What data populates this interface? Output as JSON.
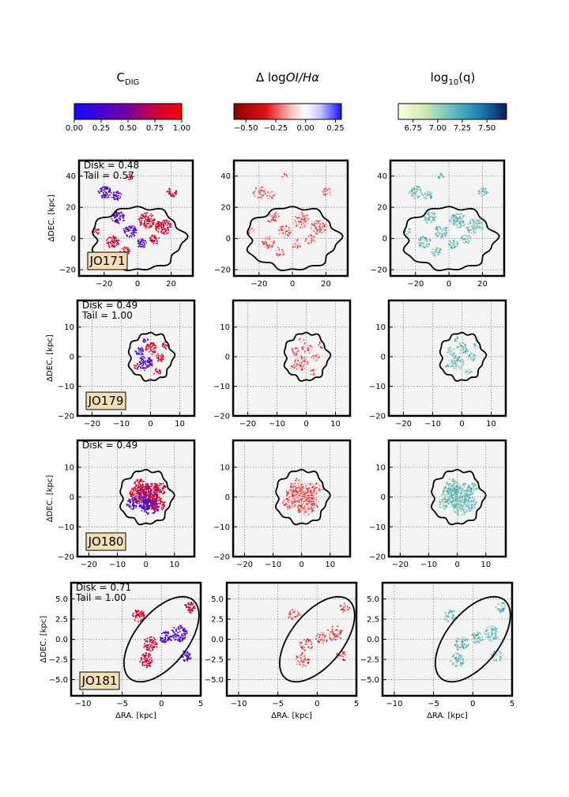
{
  "figure": {
    "columns": [
      {
        "title": "C",
        "title_sub": "DIG",
        "title_sup": "",
        "colorbar": {
          "cmap": "bwr_dig",
          "vmin": 0.0,
          "vmax": 1.0,
          "ticks": [
            0.0,
            0.25,
            0.5,
            0.75,
            1.0
          ],
          "tick_labels": [
            "0.00",
            "0.25",
            "0.50",
            "0.75",
            "1.00"
          ]
        }
      },
      {
        "title": "Δ log",
        "title_italic": "OI/Hα",
        "title_sub": "",
        "title_sup": "",
        "colorbar": {
          "cmap": "seismic_r",
          "vmin": -0.6,
          "vmax": 0.3,
          "ticks": [
            -0.5,
            -0.25,
            0.0,
            0.25
          ],
          "tick_labels": [
            "−0.50",
            "−0.25",
            "0.00",
            "0.25"
          ]
        }
      },
      {
        "title": "log",
        "title_sub": "10",
        "title_post": "(q)",
        "colorbar": {
          "cmap": "YlGnBu",
          "vmin": 6.6,
          "vmax": 7.7,
          "ticks": [
            6.75,
            7.0,
            7.25,
            7.5
          ],
          "tick_labels": [
            "6.75",
            "7.00",
            "7.25",
            "7.50"
          ]
        }
      }
    ],
    "xlabel": "ΔRA. [kpc]",
    "ylabel": "ΔDEC. [kpc]"
  },
  "chart_data": [
    {
      "type": "heatmap",
      "galaxy": "JO171",
      "disk_label": "Disk = 0.48",
      "tail_label": "Tail = 0.57",
      "xlim": [
        -35,
        33
      ],
      "ylim": [
        -24,
        50
      ],
      "xticks": [
        -20,
        0,
        20
      ],
      "yticks": [
        -20,
        0,
        20,
        40
      ],
      "xtick_labels": [
        "−20",
        "0",
        "20"
      ],
      "ytick_labels": [
        "−20",
        "0",
        "20",
        "40"
      ],
      "contour": {
        "shape": "blob",
        "cx": 0,
        "cy": 0,
        "rx": 27,
        "ry": 20,
        "rot": 0
      },
      "blobs": [
        [
          -12,
          14,
          4
        ],
        [
          5,
          12,
          5
        ],
        [
          15,
          8,
          5
        ],
        [
          -5,
          5,
          4
        ],
        [
          -15,
          -2,
          4
        ],
        [
          -8,
          -8,
          3
        ],
        [
          2,
          -3,
          3
        ],
        [
          10,
          0,
          3
        ],
        [
          -25,
          5,
          2
        ],
        [
          -20,
          30,
          4
        ],
        [
          -5,
          40,
          2
        ],
        [
          20,
          30,
          3
        ],
        [
          -13,
          28,
          3
        ]
      ]
    },
    {
      "type": "heatmap",
      "galaxy": "JO179",
      "disk_label": "Disk = 0.49",
      "tail_label": "Tail = 1.00",
      "xlim": [
        -25,
        15
      ],
      "ylim": [
        -20,
        19
      ],
      "xticks": [
        -20,
        -10,
        0,
        10
      ],
      "yticks": [
        -20,
        -10,
        0,
        10
      ],
      "xtick_labels": [
        "−20",
        "−10",
        "0",
        "10"
      ],
      "ytick_labels": [
        "−20",
        "−10",
        "0",
        "10"
      ],
      "contour": {
        "shape": "blob",
        "cx": 0,
        "cy": 0,
        "rx": 7.5,
        "ry": 8,
        "rot": 0
      },
      "blobs": [
        [
          -2,
          -2,
          2.5
        ],
        [
          0,
          3,
          2
        ],
        [
          3,
          0,
          1.5
        ],
        [
          -4,
          2,
          1.5
        ],
        [
          -5,
          -3,
          1
        ],
        [
          5,
          4,
          1.2
        ],
        [
          -2,
          6,
          1
        ],
        [
          2,
          -5,
          1.2
        ]
      ]
    },
    {
      "type": "heatmap",
      "galaxy": "JO180",
      "disk_label": "Disk = 0.49",
      "tail_label": "",
      "xlim": [
        -24,
        17
      ],
      "ylim": [
        -20,
        19
      ],
      "xticks": [
        -20,
        -10,
        0,
        10
      ],
      "yticks": [
        -20,
        -10,
        0,
        10
      ],
      "xtick_labels": [
        "−20",
        "−10",
        "0",
        "10"
      ],
      "ytick_labels": [
        "−20",
        "−10",
        "0",
        "10"
      ],
      "contour": {
        "shape": "blob",
        "cx": 0,
        "cy": 0,
        "rx": 9,
        "ry": 9,
        "rot": 0
      },
      "blobs": [
        [
          0,
          0,
          4
        ],
        [
          2,
          2,
          3
        ],
        [
          -3,
          1,
          3
        ],
        [
          1,
          -3,
          3
        ],
        [
          4,
          -2,
          2.5
        ],
        [
          -2,
          4,
          2.5
        ],
        [
          -5,
          -2,
          2
        ],
        [
          5,
          3,
          2
        ]
      ]
    },
    {
      "type": "heatmap",
      "galaxy": "JO181",
      "disk_label": "Disk = 0.71",
      "tail_label": "Tail = 1.00",
      "xlim": [
        -11.5,
        5
      ],
      "ylim": [
        -7,
        7
      ],
      "xticks": [
        -10,
        -5,
        0,
        5
      ],
      "yticks": [
        -5,
        -2.5,
        0,
        2.5,
        5
      ],
      "xtick_labels": [
        "−10",
        "−5",
        "0",
        "5"
      ],
      "ytick_labels": [
        "−5.0",
        "−2.5",
        "0.0",
        "2.5",
        "5.0"
      ],
      "contour": {
        "shape": "ellipse",
        "cx": 0,
        "cy": 0,
        "rx": 6.3,
        "ry": 3.3,
        "rot": 50
      },
      "blobs": [
        [
          2.2,
          0.8,
          1.0
        ],
        [
          -1.5,
          -0.5,
          0.9
        ],
        [
          -2,
          -2.5,
          0.9
        ],
        [
          0.5,
          0.3,
          0.8
        ],
        [
          3.5,
          4,
          0.7
        ],
        [
          -3,
          3,
          0.8
        ],
        [
          3,
          -2,
          0.7
        ]
      ]
    }
  ]
}
